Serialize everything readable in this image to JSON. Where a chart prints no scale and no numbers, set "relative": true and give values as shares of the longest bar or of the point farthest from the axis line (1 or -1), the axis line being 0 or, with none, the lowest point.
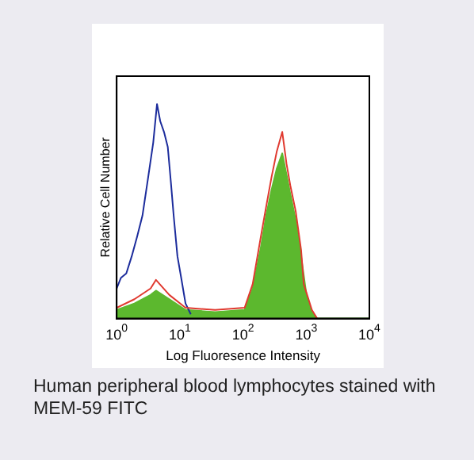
{
  "chart_data": {
    "type": "line",
    "relative": true,
    "log": "x",
    "xlabel": "Log Fluoresence Intensity",
    "ylabel": "Relative Cell Number",
    "xlim": [
      1,
      10000
    ],
    "xticks": [
      {
        "value": 1,
        "label": "10$^{0}$"
      },
      {
        "value": 10,
        "label": "10$^{1}$"
      },
      {
        "value": 100,
        "label": "10$^{2}$"
      },
      {
        "value": 1000,
        "label": "10$^{3}$"
      },
      {
        "value": 10000,
        "label": "10$^{4}$"
      }
    ],
    "grid": false,
    "legend": false,
    "marker": "none",
    "line_style": "solid",
    "annotations": [
      "Human peripheral blood lymphocytes stained with MEM-59 FITC"
    ],
    "series": [
      {
        "color": "#1c2c9c",
        "x": [
          1,
          1.17,
          1.42,
          1.73,
          2.1,
          2.56,
          3.12,
          3.79,
          4.35,
          4.89,
          5.61,
          6.44,
          7.24,
          7.98,
          9.16,
          10.5,
          12.3,
          14.9
        ],
        "values": [
          0.14,
          0.19,
          0.21,
          0.29,
          0.38,
          0.48,
          0.65,
          0.82,
          1.0,
          0.92,
          0.87,
          0.8,
          0.63,
          0.48,
          0.29,
          0.19,
          0.07,
          0.02
        ]
      },
      {
        "type": "area",
        "color": "#5cb82e",
        "x": [
          1,
          1.91,
          3.44,
          4.18,
          6.82,
          12.3,
          36.1,
          106,
          142,
          191,
          232,
          283,
          343,
          418,
          489,
          561,
          682,
          830,
          1010,
          1230,
          1490,
          10000
        ],
        "values": [
          0.04,
          0.07,
          0.11,
          0.13,
          0.09,
          0.04,
          0.03,
          0.04,
          0.14,
          0.33,
          0.48,
          0.6,
          0.7,
          0.77,
          0.67,
          0.58,
          0.46,
          0.29,
          0.11,
          0.03,
          0,
          0
        ]
      },
      {
        "color": "#e03a30",
        "x": [
          1,
          1.91,
          3.44,
          4.18,
          6.82,
          12.3,
          36.1,
          106,
          142,
          191,
          232,
          283,
          343,
          418,
          489,
          561,
          682,
          830,
          916,
          1010,
          1230,
          1490
        ],
        "values": [
          0.05,
          0.09,
          0.14,
          0.18,
          0.11,
          0.05,
          0.04,
          0.05,
          0.16,
          0.38,
          0.52,
          0.66,
          0.78,
          0.87,
          0.72,
          0.62,
          0.5,
          0.32,
          0.16,
          0.12,
          0.04,
          0
        ]
      }
    ]
  }
}
